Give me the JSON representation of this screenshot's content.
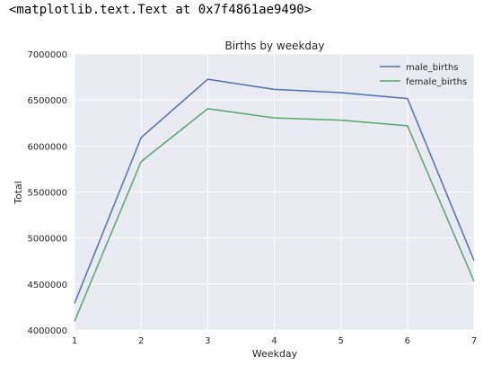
{
  "console_output": "<matplotlib.text.Text at 0x7f4861ae9490>",
  "colors": {
    "plot_bg": "#EAEAF2",
    "grid": "#FFFFFF",
    "male_births": "#4C72B0",
    "female_births": "#55A868"
  },
  "chart_data": {
    "type": "line",
    "title": "Births by weekday",
    "xlabel": "Weekday",
    "ylabel": "Total",
    "x": [
      1,
      2,
      3,
      4,
      5,
      6,
      7
    ],
    "xlim": [
      1,
      7
    ],
    "ylim": [
      4000000,
      7000000
    ],
    "xticks": [
      "1",
      "2",
      "3",
      "4",
      "5",
      "6",
      "7"
    ],
    "yticks": [
      "4000000",
      "4500000",
      "5000000",
      "5500000",
      "6000000",
      "6500000",
      "7000000"
    ],
    "ytick_values": [
      4000000,
      4500000,
      5000000,
      5500000,
      6000000,
      6500000,
      7000000
    ],
    "grid": true,
    "legend_position": "top-right",
    "series": [
      {
        "name": "male_births",
        "values": [
          4290000,
          6090000,
          6725000,
          6615000,
          6580000,
          6515000,
          4755000
        ]
      },
      {
        "name": "female_births",
        "values": [
          4095000,
          5830000,
          6405000,
          6305000,
          6280000,
          6220000,
          4530000
        ]
      }
    ]
  }
}
